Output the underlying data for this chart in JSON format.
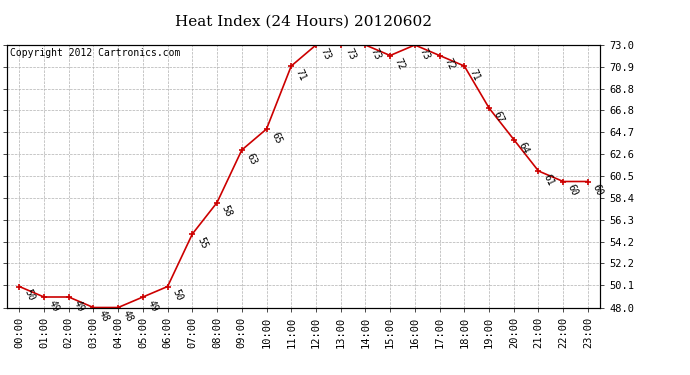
{
  "title": "Heat Index (24 Hours) 20120602",
  "copyright": "Copyright 2012 Cartronics.com",
  "hours": [
    "00:00",
    "01:00",
    "02:00",
    "03:00",
    "04:00",
    "05:00",
    "06:00",
    "07:00",
    "08:00",
    "09:00",
    "10:00",
    "11:00",
    "12:00",
    "13:00",
    "14:00",
    "15:00",
    "16:00",
    "17:00",
    "18:00",
    "19:00",
    "20:00",
    "21:00",
    "22:00",
    "23:00"
  ],
  "values": [
    50,
    49,
    49,
    48,
    48,
    49,
    50,
    55,
    58,
    63,
    65,
    71,
    73,
    73,
    73,
    72,
    73,
    72,
    71,
    67,
    64,
    61,
    60,
    60
  ],
  "ylim": [
    48.0,
    73.0
  ],
  "yticks": [
    48.0,
    50.1,
    52.2,
    54.2,
    56.3,
    58.4,
    60.5,
    62.6,
    64.7,
    66.8,
    68.8,
    70.9,
    73.0
  ],
  "ytick_labels": [
    "48.0",
    "50.1",
    "52.2",
    "54.2",
    "56.3",
    "58.4",
    "60.5",
    "62.6",
    "64.7",
    "66.8",
    "68.8",
    "70.9",
    "73.0"
  ],
  "line_color": "#cc0000",
  "marker_color": "#cc0000",
  "bg_color": "#ffffff",
  "grid_color": "#b0b0b0",
  "title_fontsize": 11,
  "copyright_fontsize": 7,
  "label_fontsize": 7,
  "tick_fontsize": 7.5
}
